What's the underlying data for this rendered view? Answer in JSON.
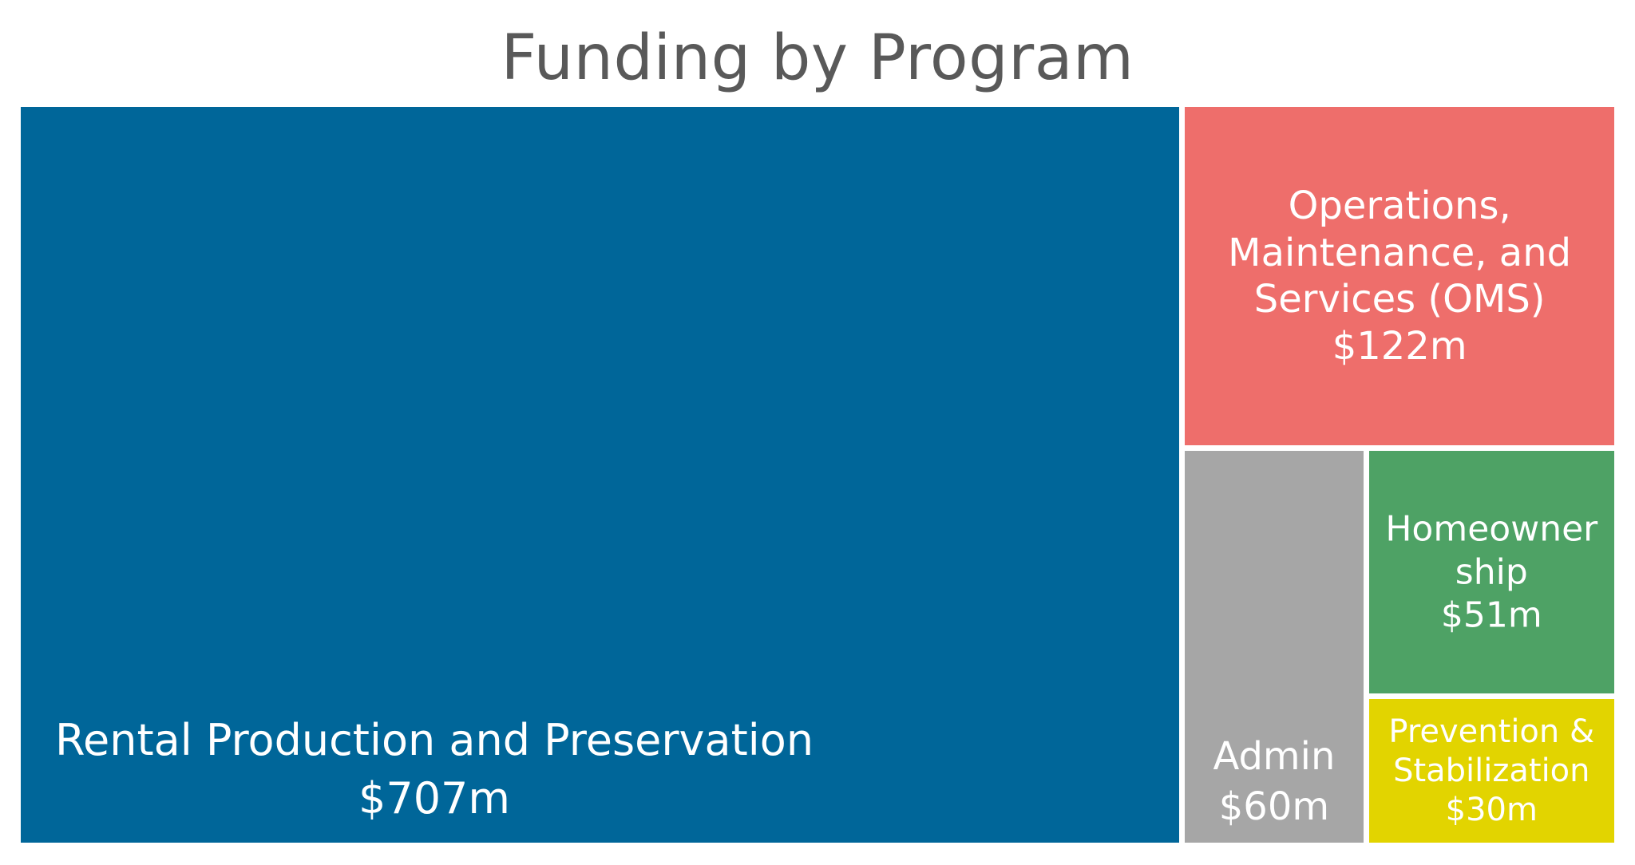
{
  "chart_data": {
    "type": "treemap",
    "title": "Funding by Program",
    "unit": "$m",
    "items": [
      {
        "label": "Rental Production and Preservation",
        "value": 707,
        "value_label": "$707m",
        "color": "#006699"
      },
      {
        "label": "Operations,\nMaintenance, and\nServices (OMS)",
        "value": 122,
        "value_label": "$122m",
        "color": "#EE6E6B"
      },
      {
        "label": "Admin",
        "value": 60,
        "value_label": "$60m",
        "color": "#A6A6A6"
      },
      {
        "label": "Homeowner\nship",
        "value": 51,
        "value_label": "$51m",
        "color": "#4EA265"
      },
      {
        "label": "Prevention &\nStabilization",
        "value": 30,
        "value_label": "$30m",
        "color": "#E2D400"
      }
    ]
  }
}
